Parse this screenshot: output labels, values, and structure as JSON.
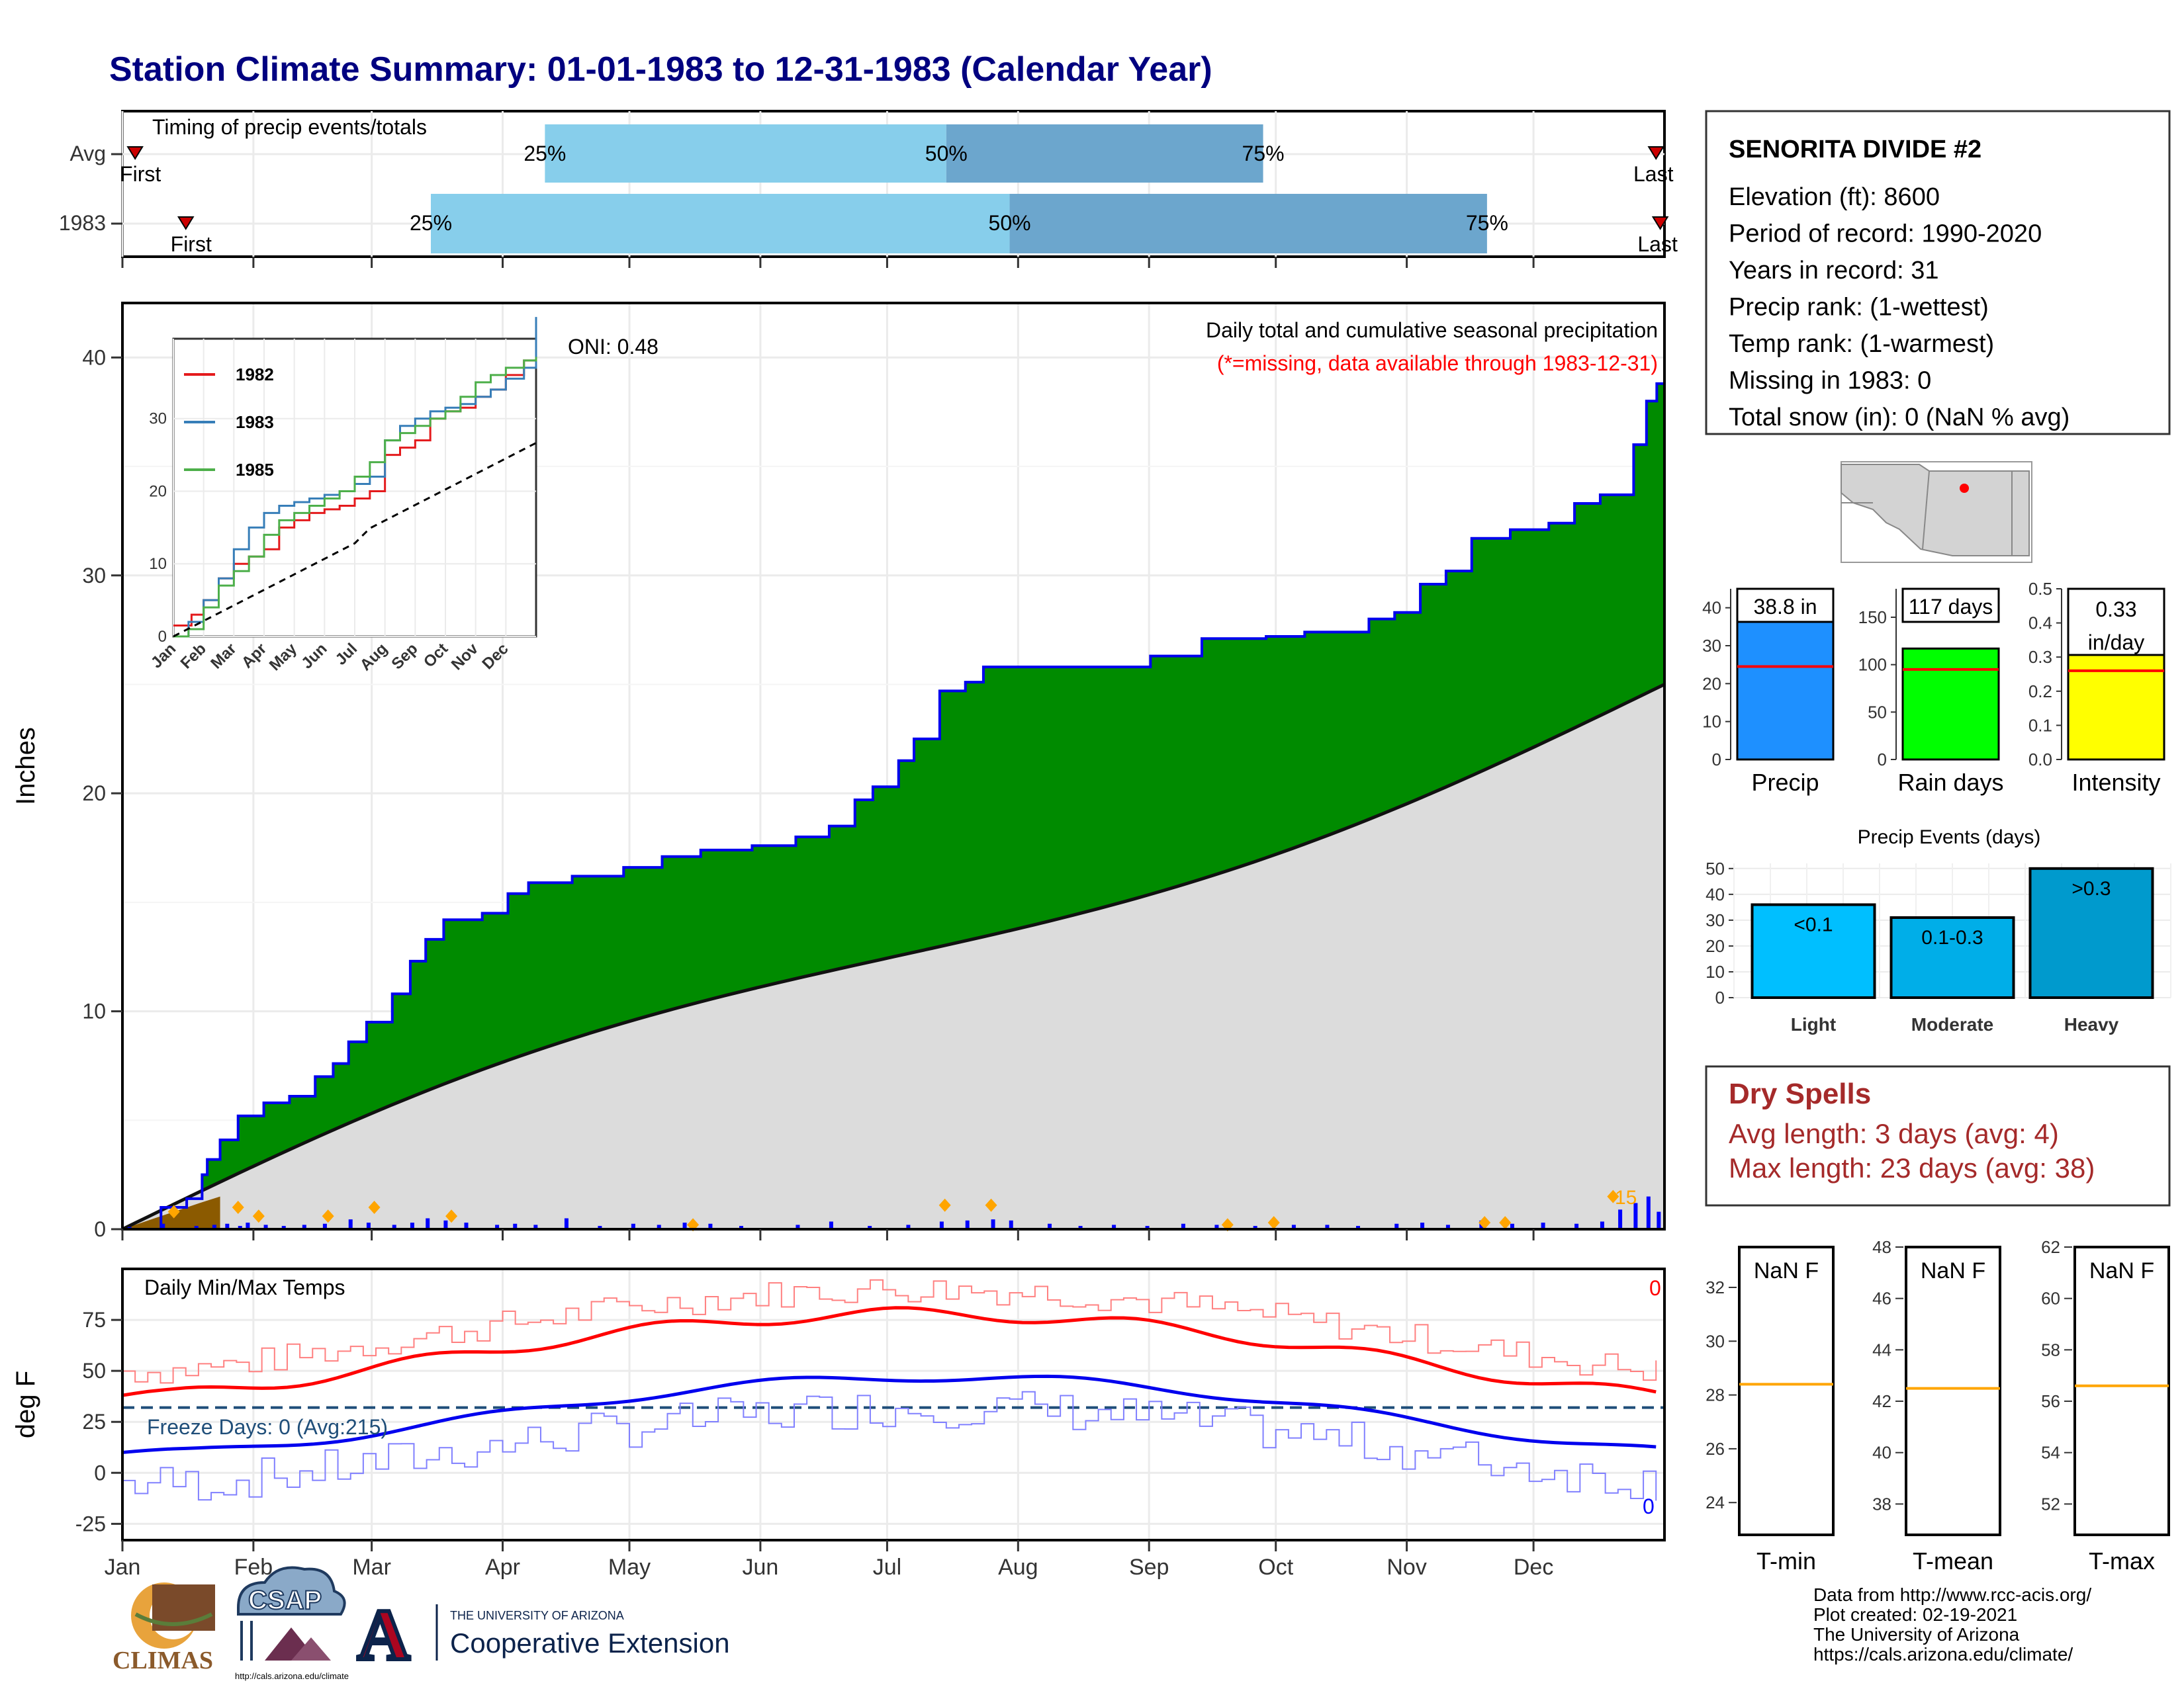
{
  "title": "Station Climate Summary: 01-01-1983 to 12-31-1983 (Calendar Year)",
  "months": [
    "Jan",
    "Feb",
    "Mar",
    "Apr",
    "May",
    "Jun",
    "Jul",
    "Aug",
    "Sep",
    "Oct",
    "Nov",
    "Dec"
  ],
  "timing": {
    "title": "Timing of precip events/totals",
    "rows": [
      {
        "label": "Avg",
        "first_label": "First",
        "last_label": "Last",
        "first_doy": 3,
        "last_doy": 363,
        "p25_doy": 100,
        "p50_doy": 195,
        "p75_doy": 270
      },
      {
        "label": "1983",
        "first_label": "First",
        "last_label": "Last",
        "first_doy": 15,
        "last_doy": 364,
        "p25_doy": 73,
        "p50_doy": 210,
        "p75_doy": 323
      }
    ],
    "pct_labels": [
      "25%",
      "50%",
      "75%"
    ]
  },
  "precip_panel": {
    "ylabel": "Inches",
    "yticks": [
      0,
      10,
      20,
      30,
      40
    ],
    "ylim": [
      0,
      42.5
    ],
    "title": "Daily total and cumulative seasonal precipitation",
    "missing_note": "(*=missing, data available through 1983-12-31)",
    "oni": "ONI: 0.48",
    "peak_label": "15",
    "cumulative_1983": [
      [
        0,
        0
      ],
      [
        15,
        1
      ],
      [
        25,
        1.4
      ],
      [
        31,
        2.5
      ],
      [
        33,
        3.2
      ],
      [
        38,
        4.1
      ],
      [
        45,
        5.2
      ],
      [
        55,
        5.8
      ],
      [
        65,
        6.1
      ],
      [
        75,
        7.0
      ],
      [
        82,
        7.6
      ],
      [
        88,
        8.6
      ],
      [
        95,
        9.5
      ],
      [
        105,
        10.8
      ],
      [
        112,
        12.3
      ],
      [
        118,
        13.3
      ],
      [
        125,
        14.2
      ],
      [
        140,
        14.5
      ],
      [
        150,
        15.4
      ],
      [
        158,
        15.9
      ],
      [
        175,
        16.2
      ],
      [
        195,
        16.6
      ],
      [
        210,
        17.1
      ],
      [
        225,
        17.4
      ],
      [
        245,
        17.6
      ],
      [
        262,
        18.0
      ],
      [
        275,
        18.5
      ],
      [
        285,
        19.7
      ],
      [
        292,
        20.3
      ],
      [
        302,
        21.5
      ],
      [
        308,
        22.5
      ],
      [
        318,
        24.7
      ],
      [
        328,
        25.1
      ],
      [
        335,
        25.8
      ],
      [
        385,
        25.8
      ],
      [
        400,
        26.3
      ],
      [
        420,
        27.1
      ],
      [
        445,
        27.2
      ],
      [
        460,
        27.4
      ],
      [
        470,
        27.4
      ],
      [
        485,
        28.0
      ],
      [
        495,
        28.3
      ],
      [
        505,
        29.6
      ],
      [
        515,
        30.2
      ],
      [
        525,
        31.7
      ],
      [
        540,
        32.1
      ],
      [
        555,
        32.4
      ],
      [
        565,
        33.3
      ],
      [
        575,
        33.7
      ],
      [
        588,
        36.0
      ],
      [
        593,
        38.0
      ],
      [
        597,
        38.8
      ],
      [
        600,
        38.8
      ]
    ],
    "cumulative_avg_end": 25.0,
    "daily_bars": [
      [
        2,
        0.1
      ],
      [
        15,
        0.25
      ],
      [
        28,
        0.15
      ],
      [
        35,
        0.2
      ],
      [
        40,
        0.25
      ],
      [
        45,
        0.15
      ],
      [
        48,
        0.3
      ],
      [
        55,
        0.2
      ],
      [
        62,
        0.15
      ],
      [
        70,
        0.2
      ],
      [
        78,
        0.25
      ],
      [
        88,
        0.45
      ],
      [
        95,
        0.3
      ],
      [
        105,
        0.2
      ],
      [
        112,
        0.3
      ],
      [
        118,
        0.5
      ],
      [
        125,
        0.4
      ],
      [
        133,
        0.3
      ],
      [
        145,
        0.2
      ],
      [
        152,
        0.25
      ],
      [
        160,
        0.2
      ],
      [
        172,
        0.5
      ],
      [
        185,
        0.15
      ],
      [
        198,
        0.25
      ],
      [
        208,
        0.2
      ],
      [
        218,
        0.3
      ],
      [
        228,
        0.25
      ],
      [
        240,
        0.15
      ],
      [
        262,
        0.2
      ],
      [
        275,
        0.35
      ],
      [
        290,
        0.15
      ],
      [
        305,
        0.2
      ],
      [
        318,
        0.35
      ],
      [
        328,
        0.4
      ],
      [
        338,
        0.45
      ],
      [
        345,
        0.4
      ],
      [
        360,
        0.25
      ],
      [
        372,
        0.15
      ],
      [
        385,
        0.2
      ],
      [
        398,
        0.15
      ],
      [
        412,
        0.25
      ],
      [
        425,
        0.2
      ],
      [
        440,
        0.15
      ],
      [
        455,
        0.2
      ],
      [
        468,
        0.2
      ],
      [
        480,
        0.15
      ],
      [
        495,
        0.25
      ],
      [
        505,
        0.3
      ],
      [
        515,
        0.2
      ],
      [
        528,
        0.4
      ],
      [
        540,
        0.25
      ],
      [
        552,
        0.3
      ],
      [
        565,
        0.25
      ],
      [
        575,
        0.35
      ],
      [
        582,
        0.9
      ],
      [
        588,
        1.2
      ],
      [
        593,
        1.5
      ],
      [
        597,
        0.8
      ]
    ],
    "markers": [
      [
        20,
        0.8
      ],
      [
        45,
        1.0
      ],
      [
        53,
        0.6
      ],
      [
        80,
        0.6
      ],
      [
        98,
        1.0
      ],
      [
        128,
        0.6
      ],
      [
        222,
        0.2
      ],
      [
        320,
        1.1
      ],
      [
        338,
        1.1
      ],
      [
        430,
        0.2
      ],
      [
        448,
        0.3
      ],
      [
        530,
        0.3
      ],
      [
        538,
        0.3
      ],
      [
        580,
        1.5
      ]
    ]
  },
  "inset": {
    "series": [
      {
        "name": "1982",
        "color": "#e41a1c"
      },
      {
        "name": "1983",
        "color": "#377eb8"
      },
      {
        "name": "1985",
        "color": "#4daf4a"
      }
    ],
    "yticks": [
      0,
      10,
      20,
      30
    ],
    "months": [
      "Jan",
      "Feb",
      "Mar",
      "Apr",
      "May",
      "Jun",
      "Jul",
      "Aug",
      "Sep",
      "Oct",
      "Nov",
      "Dec"
    ]
  },
  "temp_panel": {
    "ylabel": "deg F",
    "title": "Daily Min/Max Temps",
    "yticks": [
      -25,
      0,
      25,
      50,
      75
    ],
    "freeze_label": "Freeze Days: 0 (Avg:215)",
    "freeze_line": 32,
    "count_max": "0",
    "count_min": "0"
  },
  "station_box": {
    "name": "SENORITA DIVIDE #2",
    "lines": [
      "Elevation (ft): 8600",
      "Period of record: 1990-2020",
      "Years in record: 31",
      "Precip rank:  (1-wettest)",
      "Temp rank:  (1-warmest)",
      "Missing in 1983: 0",
      "Total snow (in): 0 (NaN % avg)"
    ]
  },
  "mini_bars": [
    {
      "label": "Precip",
      "value_label": "38.8 in",
      "value": 38.8,
      "avg": 24.5,
      "ymax": 45,
      "yticks": [
        0,
        10,
        20,
        30,
        40
      ],
      "color": "#1e90ff"
    },
    {
      "label": "Rain days",
      "value_label": "117 days",
      "value": 117,
      "avg": 95,
      "ymax": 180,
      "yticks": [
        0,
        50,
        100,
        150
      ],
      "color": "#00ff00"
    },
    {
      "label": "Intensity",
      "value_label": "0.33 in/day",
      "value": 0.33,
      "avg": 0.26,
      "ymax": 0.5,
      "yticks": [
        "0.0",
        "0.1",
        "0.2",
        "0.3",
        "0.4",
        "0.5"
      ],
      "color": "#ffff00"
    }
  ],
  "events": {
    "title": "Precip Events (days)",
    "categories": [
      "Light",
      "Moderate",
      "Heavy"
    ],
    "values": [
      36,
      31,
      50
    ],
    "labels": [
      "<0.1",
      "0.1-0.3",
      ">0.3"
    ],
    "yticks": [
      0,
      10,
      20,
      30,
      40,
      50
    ],
    "colors": [
      "#00bfff",
      "#00aee8",
      "#009acd"
    ]
  },
  "dry_spells": {
    "title": "Dry Spells",
    "avg": "Avg length: 3 days (avg: 4)",
    "max": "Max length: 23 days (avg: 38)"
  },
  "tboxes": [
    {
      "label": "T-min",
      "value": "NaN F",
      "yticks": [
        24,
        26,
        28,
        30,
        32
      ],
      "ymin": 22.8,
      "ymax": 33.5,
      "ref": 28.4
    },
    {
      "label": "T-mean",
      "value": "NaN F",
      "yticks": [
        38,
        40,
        42,
        44,
        46,
        48
      ],
      "ymin": 36.8,
      "ymax": 48,
      "ref": 42.5
    },
    {
      "label": "T-max",
      "value": "NaN F",
      "yticks": [
        52,
        54,
        56,
        58,
        60,
        62
      ],
      "ymin": 50.8,
      "ymax": 62,
      "ref": 56.6
    }
  ],
  "credits": [
    "Data from http://www.rcc-acis.org/",
    "Plot created: 02-19-2021",
    "The University of Arizona",
    "https://cals.arizona.edu/climate/"
  ],
  "logos": {
    "climas": "CLIMAS",
    "csap": "CSAP",
    "csap_url": "http://cals.arizona.edu/climate",
    "ua_small": "THE UNIVERSITY OF ARIZONA",
    "ua_big": "Cooperative Extension",
    "ua_letter": "A"
  }
}
